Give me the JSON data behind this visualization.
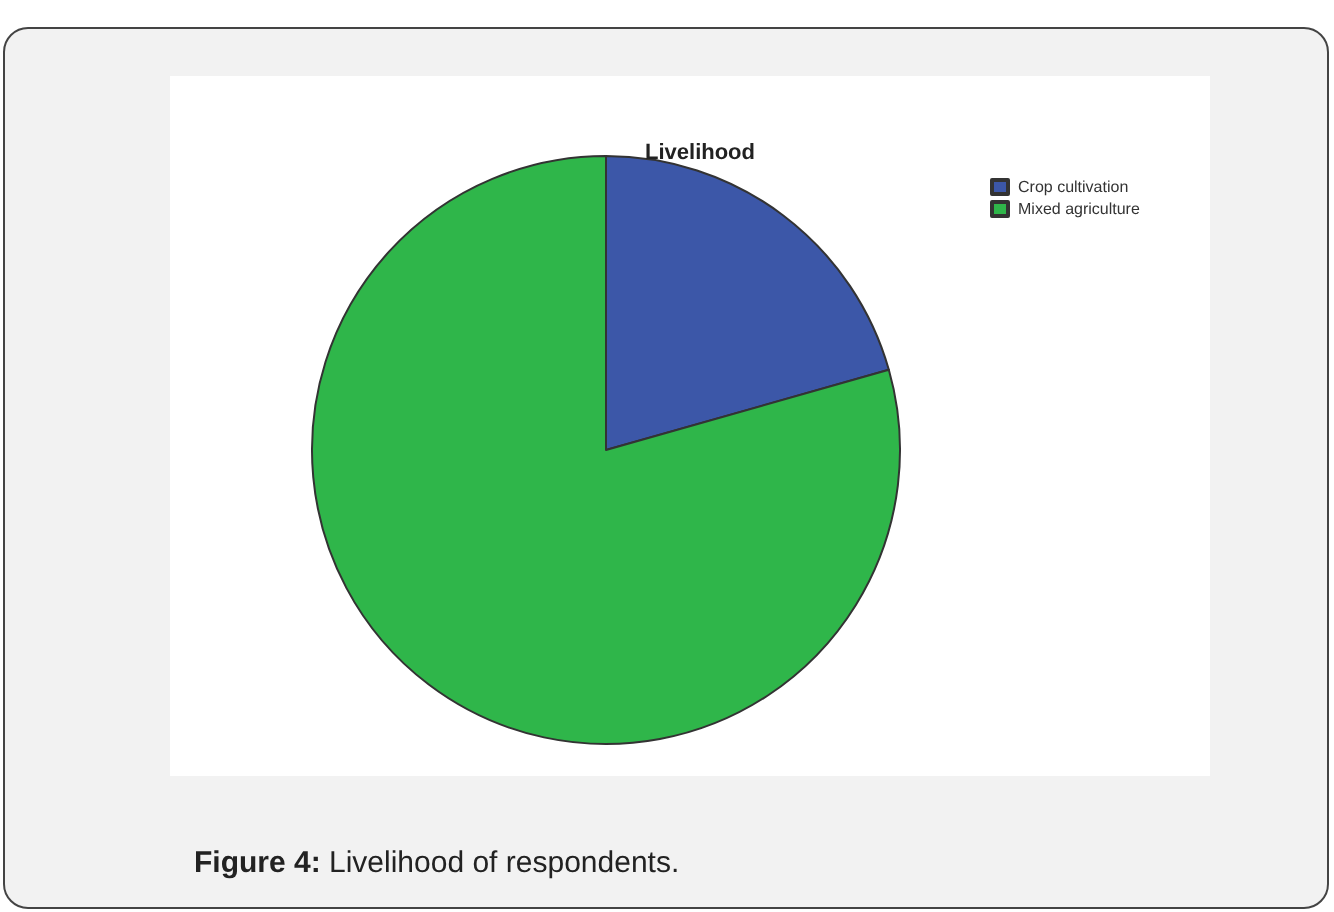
{
  "chart_data": {
    "type": "pie",
    "title": "Livelihood",
    "categories": [
      "Crop cultivation",
      "Mixed agriculture"
    ],
    "values": [
      20.6,
      79.4
    ],
    "colors": [
      "#3c57a8",
      "#2fb64a"
    ],
    "legend": "top right",
    "annotations": [
      "Figure 4: Livelihood of respondents."
    ]
  }
}
